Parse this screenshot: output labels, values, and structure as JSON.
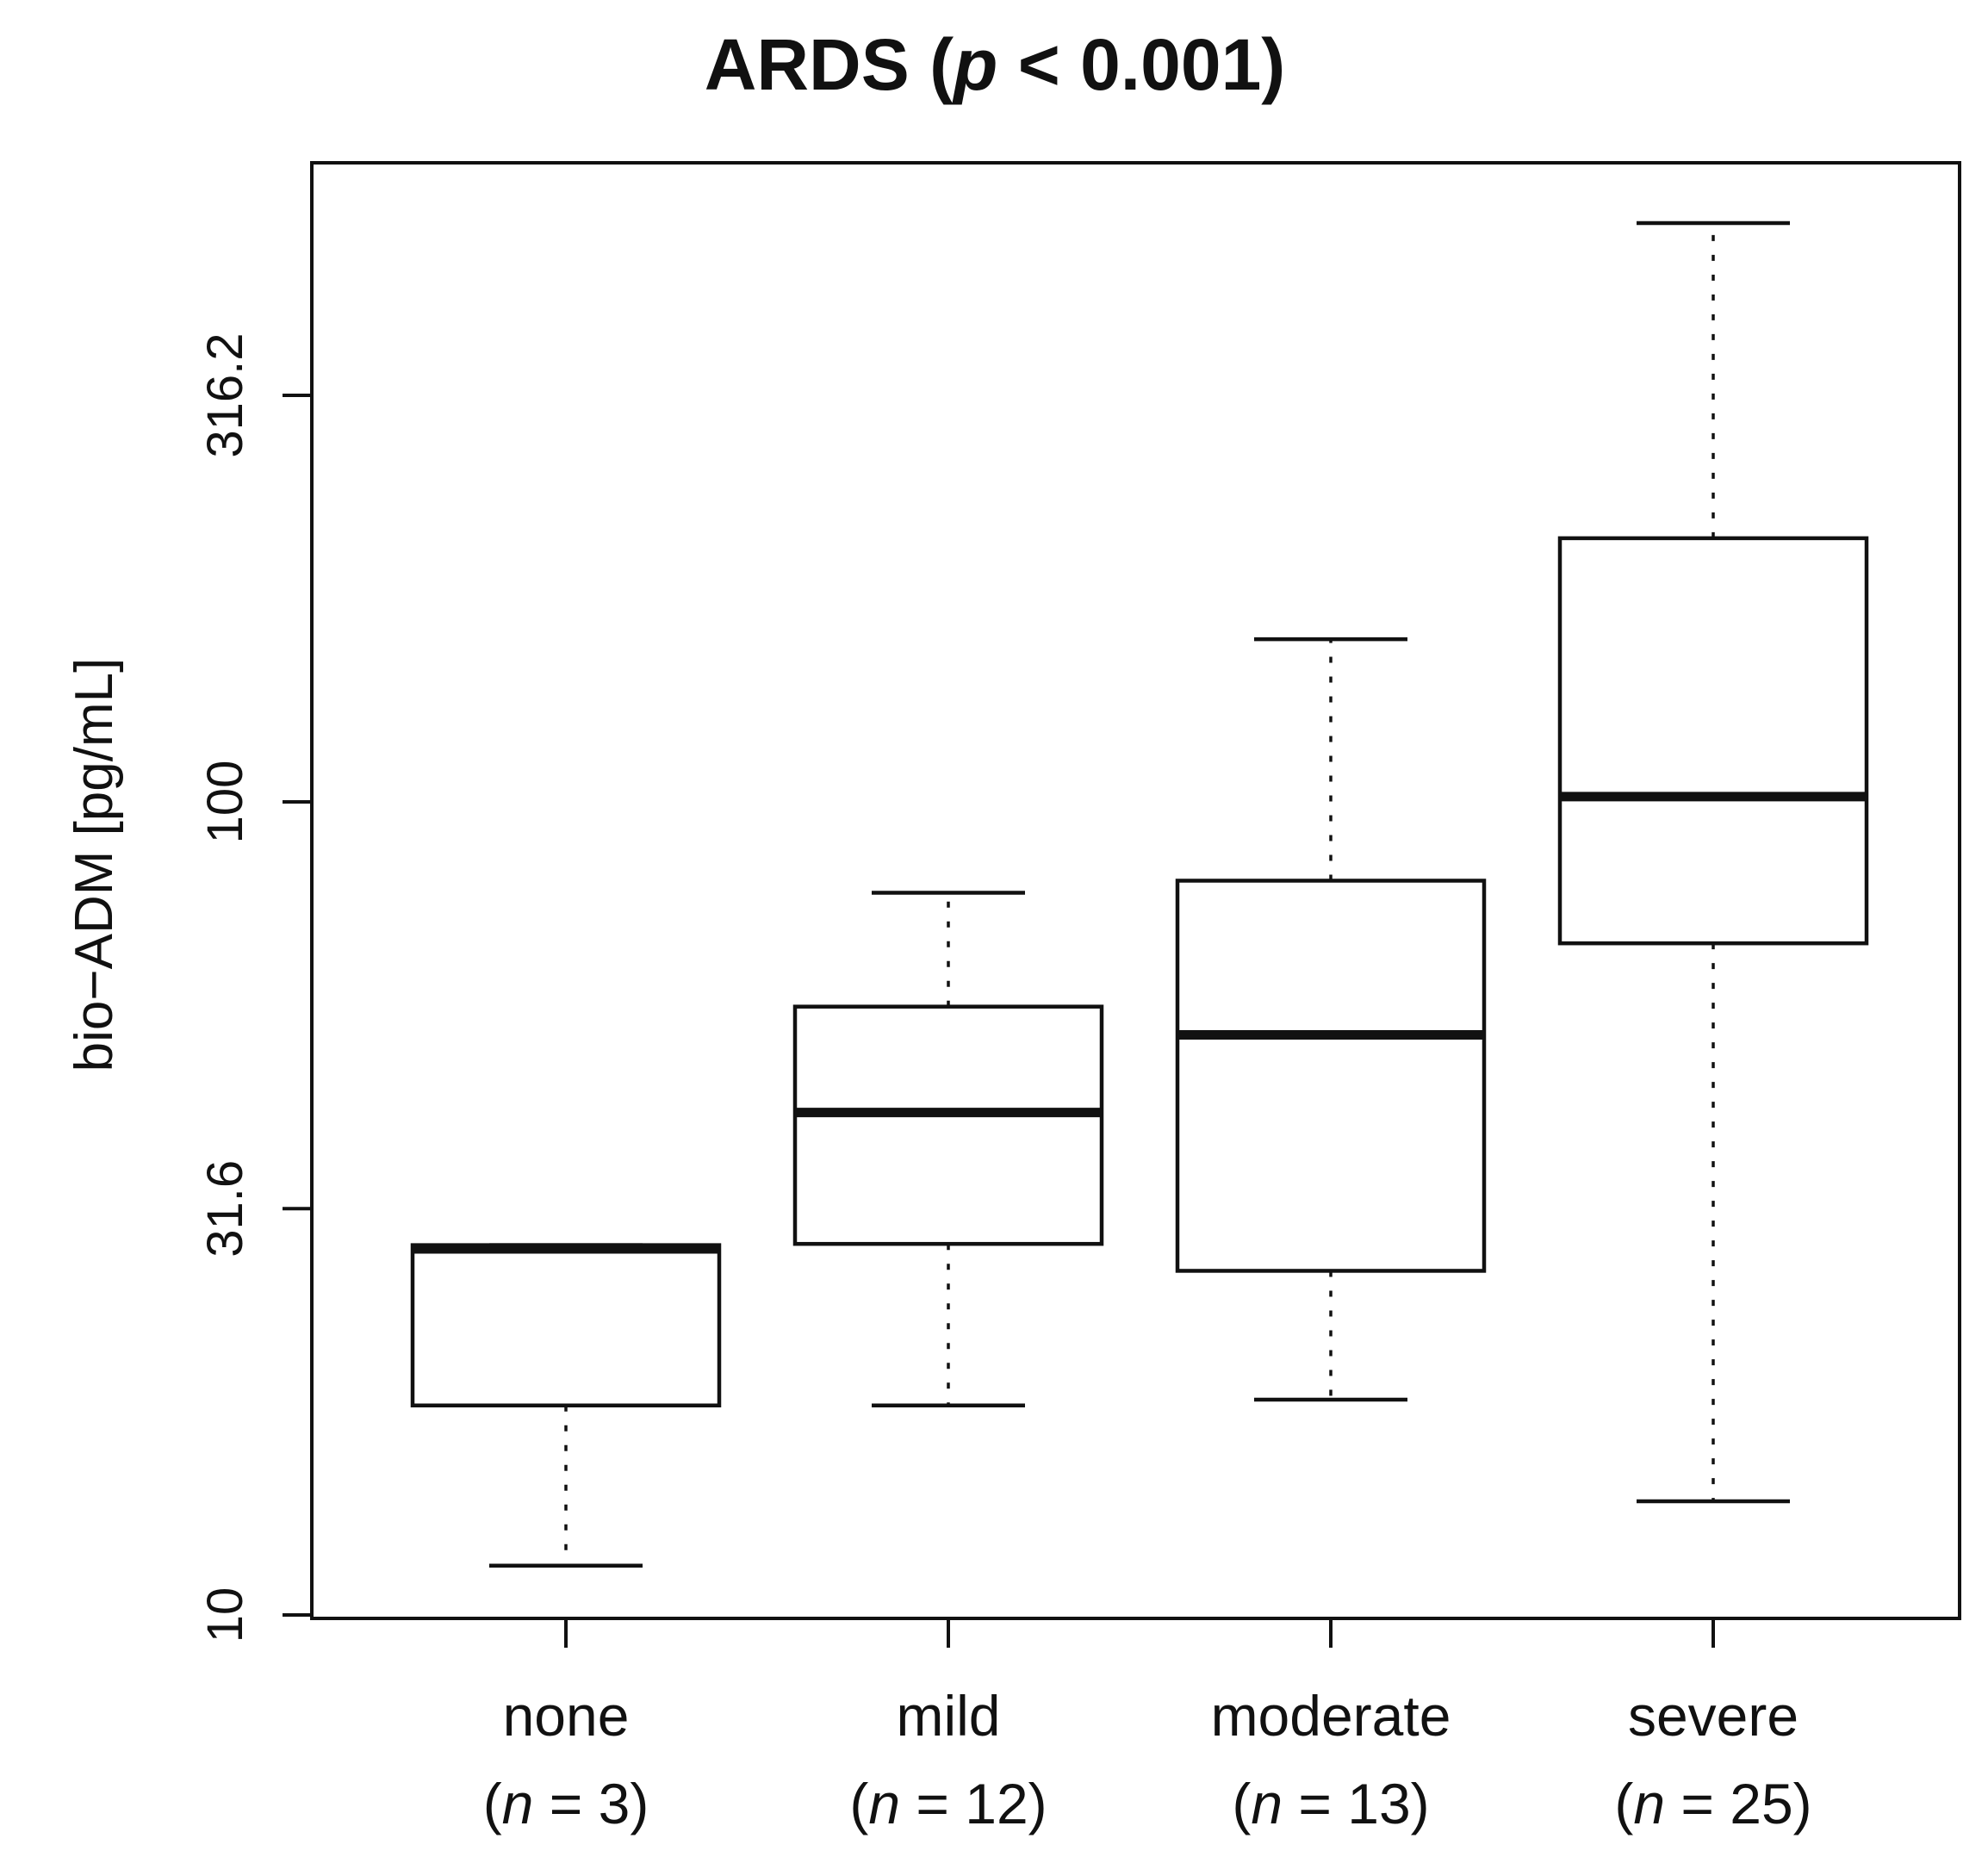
{
  "chart_data": {
    "type": "box",
    "title": {
      "prefix": "ARDS (",
      "p_symbol": "p",
      "suffix": " < 0.001)"
    },
    "ylabel": "bio−ADM [pg/mL]",
    "xlabel": "",
    "y_scale": "log10",
    "ylim": [
      10,
      580
    ],
    "y_ticks": [
      {
        "value": 10,
        "label": "10"
      },
      {
        "value": 31.6,
        "label": "31.6"
      },
      {
        "value": 100,
        "label": "100"
      },
      {
        "value": 316.2,
        "label": "316.2"
      }
    ],
    "categories": [
      {
        "name": "none",
        "n_prefix": "(",
        "n_symbol": "n",
        "n_suffix": " = 3)"
      },
      {
        "name": "mild",
        "n_prefix": "(",
        "n_symbol": "n",
        "n_suffix": " = 12)"
      },
      {
        "name": "moderate",
        "n_prefix": "(",
        "n_symbol": "n",
        "n_suffix": " = 13)"
      },
      {
        "name": "severe",
        "n_prefix": "(",
        "n_symbol": "n",
        "n_suffix": " = 25)"
      }
    ],
    "series": [
      {
        "name": "none",
        "whisker_low": 11.5,
        "q1": 18.1,
        "median": 28.2,
        "q3": 28.5,
        "whisker_high": 28.5
      },
      {
        "name": "mild",
        "whisker_low": 18.1,
        "q1": 28.6,
        "median": 41.5,
        "q3": 56.0,
        "whisker_high": 77.3
      },
      {
        "name": "moderate",
        "whisker_low": 18.4,
        "q1": 26.5,
        "median": 51.7,
        "q3": 80.0,
        "whisker_high": 158.5
      },
      {
        "name": "severe",
        "whisker_low": 13.8,
        "q1": 67.0,
        "median": 101.5,
        "q3": 211.0,
        "whisker_high": 515.0
      }
    ]
  }
}
